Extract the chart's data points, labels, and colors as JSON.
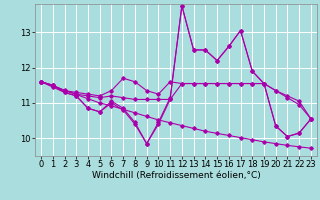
{
  "xlabel": "Windchill (Refroidissement éolien,°C)",
  "background_color": "#aadddd",
  "grid_color": "#bbeeee",
  "line_color": "#aa00aa",
  "xlim": [
    -0.5,
    23.5
  ],
  "ylim": [
    9.5,
    13.8
  ],
  "yticks": [
    10,
    11,
    12,
    13
  ],
  "xticks": [
    0,
    1,
    2,
    3,
    4,
    5,
    6,
    7,
    8,
    9,
    10,
    11,
    12,
    13,
    14,
    15,
    16,
    17,
    18,
    19,
    20,
    21,
    22,
    23
  ],
  "lines": [
    {
      "x": [
        0,
        1,
        2,
        3,
        4,
        5,
        6,
        7,
        8,
        9,
        10,
        11,
        12,
        13,
        14,
        15,
        16,
        17,
        18,
        19,
        20,
        21,
        22,
        23
      ],
      "y": [
        11.6,
        11.5,
        11.3,
        11.2,
        10.85,
        10.75,
        11.05,
        10.85,
        10.45,
        9.85,
        10.45,
        11.15,
        13.75,
        12.5,
        12.5,
        12.2,
        12.6,
        13.05,
        11.9,
        11.55,
        10.35,
        10.05,
        10.15,
        10.55
      ]
    },
    {
      "x": [
        0,
        1,
        2,
        3,
        4,
        5,
        6,
        7,
        8,
        9,
        10,
        11,
        12,
        13,
        14,
        15,
        16,
        17,
        18,
        19,
        20,
        21,
        22,
        23
      ],
      "y": [
        11.6,
        11.5,
        11.35,
        11.3,
        11.25,
        11.2,
        11.35,
        11.7,
        11.6,
        11.35,
        11.25,
        11.6,
        11.55,
        11.55,
        11.55,
        11.55,
        11.55,
        11.55,
        11.55,
        11.55,
        11.35,
        11.2,
        11.05,
        10.55
      ]
    },
    {
      "x": [
        0,
        1,
        2,
        3,
        4,
        5,
        6,
        7,
        8,
        9,
        10,
        11,
        12,
        13,
        14,
        15,
        16,
        17,
        18,
        19,
        20,
        21,
        22,
        23
      ],
      "y": [
        11.6,
        11.5,
        11.35,
        11.25,
        11.2,
        11.15,
        11.2,
        11.15,
        11.1,
        11.1,
        11.1,
        11.1,
        11.55,
        11.55,
        11.55,
        11.55,
        11.55,
        11.55,
        11.55,
        11.55,
        11.35,
        11.15,
        10.95,
        10.55
      ]
    },
    {
      "x": [
        0,
        1,
        2,
        3,
        4,
        5,
        6,
        7,
        8,
        9,
        10,
        11,
        12,
        13,
        14,
        15,
        16,
        17,
        18,
        19,
        20,
        21,
        22,
        23
      ],
      "y": [
        11.6,
        11.48,
        11.36,
        11.24,
        11.12,
        11.0,
        10.92,
        10.82,
        10.72,
        10.62,
        10.52,
        10.44,
        10.36,
        10.28,
        10.2,
        10.14,
        10.08,
        10.02,
        9.96,
        9.9,
        9.85,
        9.8,
        9.76,
        9.72
      ]
    },
    {
      "x": [
        0,
        1,
        2,
        3,
        4,
        5,
        6,
        7,
        8,
        9,
        10,
        11,
        12,
        13,
        14,
        15,
        16,
        17,
        18,
        19,
        20,
        21,
        22,
        23
      ],
      "y": [
        11.6,
        11.45,
        11.3,
        11.2,
        10.85,
        10.75,
        11.0,
        10.8,
        10.4,
        9.85,
        10.4,
        11.1,
        13.75,
        12.5,
        12.5,
        12.2,
        12.6,
        13.05,
        11.9,
        11.55,
        10.35,
        10.05,
        10.15,
        10.55
      ]
    }
  ],
  "xlabel_fontsize": 6.5,
  "tick_fontsize": 6
}
